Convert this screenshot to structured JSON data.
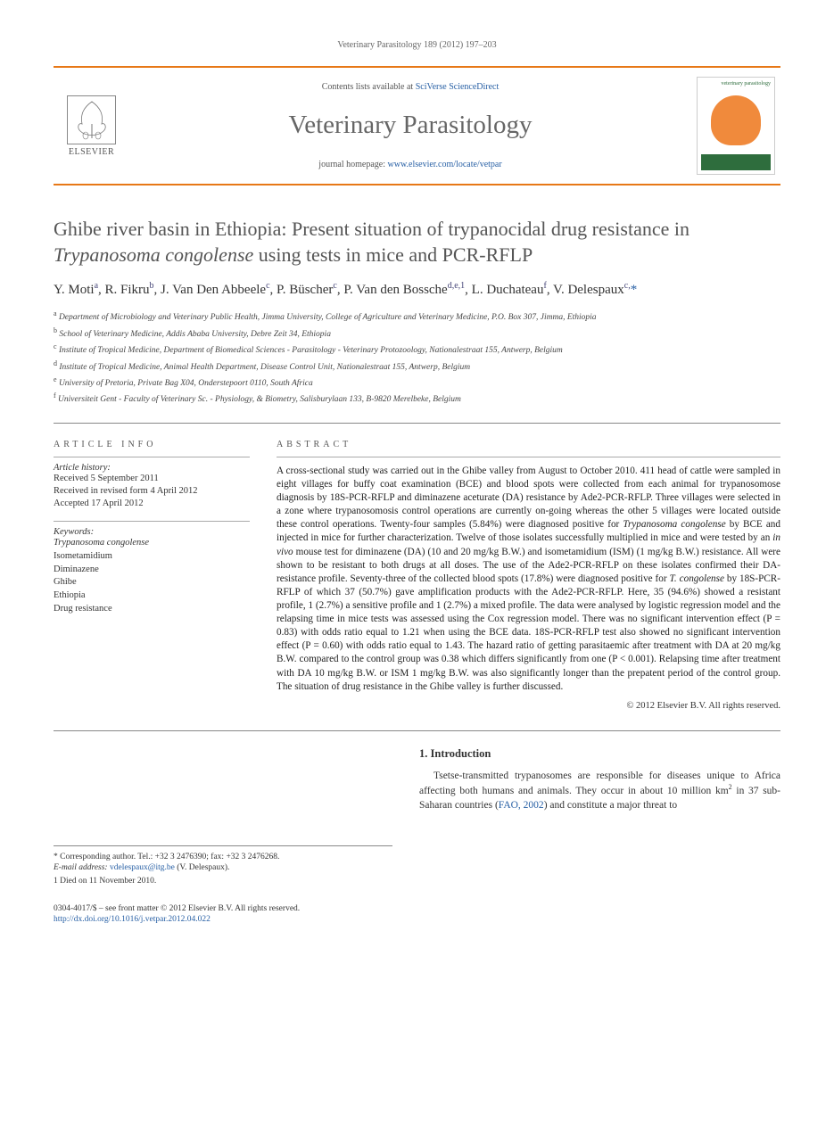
{
  "running_head": "Veterinary Parasitology 189 (2012) 197–203",
  "header": {
    "contents_prefix": "Contents lists available at ",
    "contents_link": "SciVerse ScienceDirect",
    "journal": "Veterinary Parasitology",
    "homepage_prefix": "journal homepage: ",
    "homepage_url": "www.elsevier.com/locate/vetpar",
    "publisher": "ELSEVIER",
    "cover_label": "veterinary parasitology"
  },
  "title_pre": "Ghibe river basin in Ethiopia: Present situation of trypanocidal drug resistance in ",
  "title_italic": "Trypanosoma congolense",
  "title_post": " using tests in mice and PCR-RFLP",
  "authors_html": "Y. Moti<sup>a</sup>, R. Fikru<sup>b</sup>, J. Van Den Abbeele<sup>c</sup>, P. Büscher<sup>c</sup>, P. Van den Bossche<sup>d,e,1</sup>, L. Duchateau<sup>f</sup>, V. Delespaux<sup>c,</sup><span class='corr'>*</span>",
  "affiliations": [
    "a  Department of Microbiology and Veterinary Public Health, Jimma University, College of Agriculture and Veterinary Medicine, P.O. Box 307, Jimma, Ethiopia",
    "b  School of Veterinary Medicine, Addis Ababa University, Debre Zeit 34, Ethiopia",
    "c  Institute of Tropical Medicine, Department of Biomedical Sciences - Parasitology - Veterinary Protozoology, Nationalestraat 155, Antwerp, Belgium",
    "d  Institute of Tropical Medicine, Animal Health Department, Disease Control Unit, Nationalestraat 155, Antwerp, Belgium",
    "e  University of Pretoria, Private Bag X04, Onderstepoort 0110, South Africa",
    "f  Universiteit Gent - Faculty of Veterinary Sc. - Physiology, & Biometry, Salisburylaan 133, B-9820 Merelbeke, Belgium"
  ],
  "info": {
    "head": "ARTICLE INFO",
    "history_label": "Article history:",
    "history": "Received 5 September 2011\nReceived in revised form 4 April 2012\nAccepted 17 April 2012",
    "kw_label": "Keywords:",
    "keywords": "Trypanosoma congolense\nIsometamidium\nDiminazene\nGhibe\nEthiopia\nDrug resistance"
  },
  "abstract": {
    "head": "ABSTRACT",
    "text": "A cross-sectional study was carried out in the Ghibe valley from August to October 2010. 411 head of cattle were sampled in eight villages for buffy coat examination (BCE) and blood spots were collected from each animal for trypanosomose diagnosis by 18S-PCR-RFLP and diminazene aceturate (DA) resistance by Ade2-PCR-RFLP. Three villages were selected in a zone where trypanosomosis control operations are currently on-going whereas the other 5 villages were located outside these control operations. Twenty-four samples (5.84%) were diagnosed positive for Trypanosoma congolense by BCE and injected in mice for further characterization. Twelve of those isolates successfully multiplied in mice and were tested by an in vivo mouse test for diminazene (DA) (10 and 20 mg/kg B.W.) and isometamidium (ISM) (1 mg/kg B.W.) resistance. All were shown to be resistant to both drugs at all doses. The use of the Ade2-PCR-RFLP on these isolates confirmed their DA-resistance profile. Seventy-three of the collected blood spots (17.8%) were diagnosed positive for T. congolense by 18S-PCR-RFLP of which 37 (50.7%) gave amplification products with the Ade2-PCR-RFLP. Here, 35 (94.6%) showed a resistant profile, 1 (2.7%) a sensitive profile and 1 (2.7%) a mixed profile. The data were analysed by logistic regression model and the relapsing time in mice tests was assessed using the Cox regression model. There was no significant intervention effect (P = 0.83) with odds ratio equal to 1.21 when using the BCE data. 18S-PCR-RFLP test also showed no significant intervention effect (P = 0.60) with odds ratio equal to 1.43. The hazard ratio of getting parasitaemic after treatment with DA at 20 mg/kg B.W. compared to the control group was 0.38 which differs significantly from one (P < 0.001). Relapsing time after treatment with DA 10 mg/kg B.W. or ISM 1 mg/kg B.W. was also significantly longer than the prepatent period of the control group. The situation of drug resistance in the Ghibe valley is further discussed.",
    "copyright": "© 2012 Elsevier B.V. All rights reserved."
  },
  "corresponding": {
    "label": "* Corresponding author. Tel.: +32 3 2476390; fax: +32 3 2476268.",
    "email_label": "E-mail address: ",
    "email": "vdelespaux@itg.be",
    "email_who": " (V. Delespaux).",
    "deceased": "1  Died on 11 November 2010."
  },
  "intro": {
    "head": "1.  Introduction",
    "text_pre": "Tsetse-transmitted trypanosomes are responsible for diseases unique to Africa affecting both humans and animals. They occur in about 10 million km",
    "sup": "2",
    "text_mid": " in 37 sub-Saharan countries (",
    "ref": "FAO, 2002",
    "text_post": ") and constitute a major threat to"
  },
  "footer": {
    "line1": "0304-4017/$ – see front matter © 2012 Elsevier B.V. All rights reserved.",
    "doi": "http://dx.doi.org/10.1016/j.vetpar.2012.04.022"
  },
  "colors": {
    "orange_rule": "#e77817",
    "link": "#2860a5",
    "grey_text": "#555",
    "green": "#2e6d3d"
  }
}
